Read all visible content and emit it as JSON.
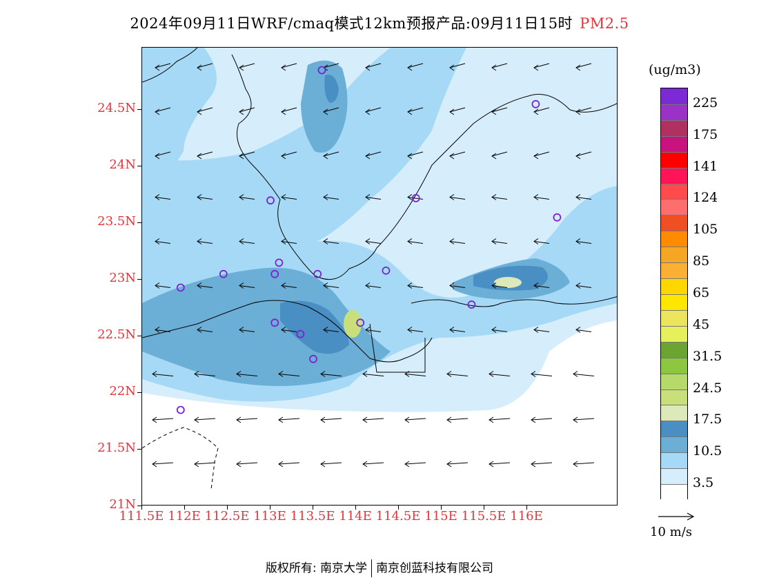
{
  "title": {
    "main": "2024年09月11日WRF/cmaq模式12km预报产品:09月11日15时",
    "variable": "PM2.5"
  },
  "axes": {
    "lat_labels": [
      "24.5N",
      "24N",
      "23.5N",
      "23N",
      "22.5N",
      "22N",
      "21.5N",
      "21N"
    ],
    "lon_labels": [
      "111.5E",
      "112E",
      "112.5E",
      "113E",
      "113.5E",
      "114E",
      "114.5E",
      "115E",
      "115.5E",
      "116E"
    ]
  },
  "colorbar": {
    "units": "(ug/m3)",
    "labels": [
      "225",
      "175",
      "141",
      "124",
      "105",
      "85",
      "65",
      "45",
      "31.5",
      "24.5",
      "17.5",
      "10.5",
      "3.5"
    ],
    "colors": [
      "#7b2ad6",
      "#9b32c8",
      "#b03060",
      "#c8137e",
      "#ff0000",
      "#ff1458",
      "#ff4b4b",
      "#ff6e6e",
      "#f04e23",
      "#ff8c00",
      "#f5a623",
      "#fbb034",
      "#ffd700",
      "#ffe600",
      "#ebe45c",
      "#e6f05a",
      "#6aa531",
      "#8dc63f",
      "#b5d96b",
      "#c9e07a",
      "#dde9b8",
      "#4a8fc4",
      "#6baed6",
      "#a6d9f5",
      "#d6eefb",
      "#ffffff"
    ]
  },
  "wind_reference": {
    "label": "10  m/s"
  },
  "footer": {
    "left": "版权所有: 南京大学",
    "right": "南京创蓝科技有限公司"
  },
  "stations": [
    {
      "lon": 113.6,
      "lat": 24.85
    },
    {
      "lon": 116.1,
      "lat": 24.55
    },
    {
      "lon": 113.0,
      "lat": 23.7
    },
    {
      "lon": 114.7,
      "lat": 23.72
    },
    {
      "lon": 116.35,
      "lat": 23.55
    },
    {
      "lon": 113.1,
      "lat": 23.15
    },
    {
      "lon": 113.05,
      "lat": 23.05
    },
    {
      "lon": 112.45,
      "lat": 23.05
    },
    {
      "lon": 113.55,
      "lat": 23.05
    },
    {
      "lon": 114.35,
      "lat": 23.08
    },
    {
      "lon": 111.95,
      "lat": 22.93
    },
    {
      "lon": 115.35,
      "lat": 22.78
    },
    {
      "lon": 113.05,
      "lat": 22.62
    },
    {
      "lon": 114.05,
      "lat": 22.62
    },
    {
      "lon": 113.35,
      "lat": 22.52
    },
    {
      "lon": 113.5,
      "lat": 22.3
    },
    {
      "lon": 111.95,
      "lat": 21.85
    }
  ]
}
